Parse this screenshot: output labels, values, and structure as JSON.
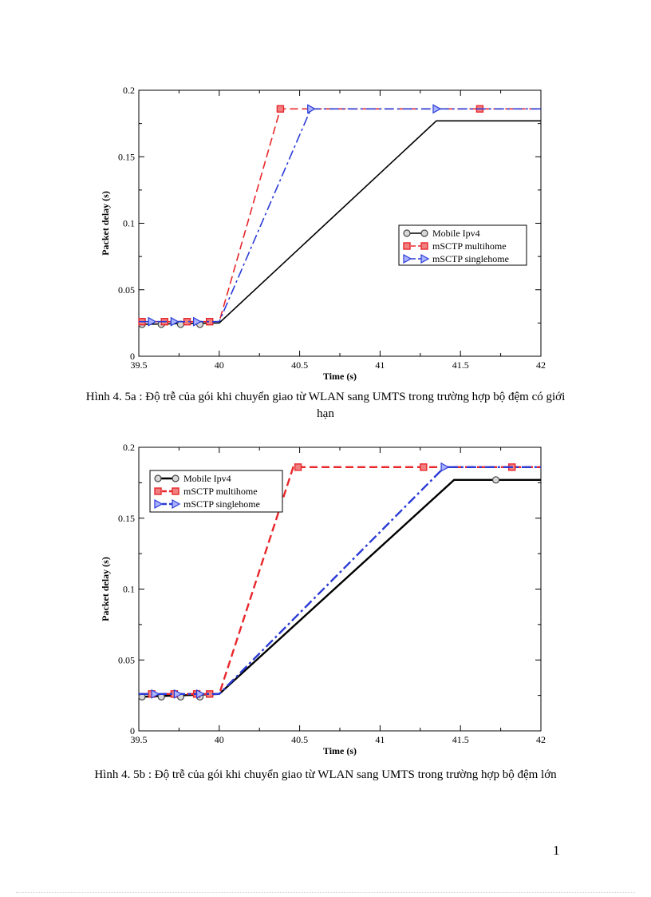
{
  "chart_data": [
    {
      "type": "line",
      "title": "",
      "xlabel": "Time (s)",
      "ylabel": "Packet delay (s)",
      "xlim": [
        39.5,
        42
      ],
      "ylim": [
        0,
        0.2
      ],
      "xticks": [
        "39.5",
        "40",
        "40.5",
        "41",
        "41.5",
        "42"
      ],
      "yticks": [
        "0",
        "0.05",
        "0.1",
        "0.15",
        "0.2"
      ],
      "legend_position": "center-right",
      "series": [
        {
          "name": "Mobile Ipv4",
          "color": "#000000",
          "marker": "circle",
          "x": [
            39.5,
            40.0,
            41.35,
            42.0
          ],
          "y": [
            0.024,
            0.025,
            0.177,
            0.177
          ],
          "marker_x": [
            39.52,
            39.64,
            39.76,
            39.88
          ],
          "marker_y": [
            0.024,
            0.024,
            0.024,
            0.024
          ]
        },
        {
          "name": "mSCTP multihome",
          "color": "#e8262b",
          "marker": "square",
          "x": [
            39.5,
            40.0,
            40.38,
            42.0
          ],
          "y": [
            0.026,
            0.026,
            0.186,
            0.186
          ],
          "marker_x": [
            39.52,
            39.66,
            39.8,
            39.94,
            40.38,
            41.62
          ],
          "marker_y": [
            0.026,
            0.026,
            0.026,
            0.026,
            0.186,
            0.186
          ]
        },
        {
          "name": "mSCTP singlehome",
          "color": "#2b3bd6",
          "marker": "triangle",
          "x": [
            39.5,
            40.0,
            40.57,
            42.0
          ],
          "y": [
            0.026,
            0.026,
            0.186,
            0.186
          ],
          "marker_x": [
            39.58,
            39.72,
            39.86,
            40.57,
            41.35
          ],
          "marker_y": [
            0.026,
            0.026,
            0.026,
            0.186,
            0.186
          ]
        }
      ]
    },
    {
      "type": "line",
      "title": "",
      "xlabel": "Time (s)",
      "ylabel": "Packet delay (s)",
      "xlim": [
        39.5,
        42
      ],
      "ylim": [
        0,
        0.2
      ],
      "xticks": [
        "39.5",
        "40",
        "40.5",
        "41",
        "41.5",
        "42"
      ],
      "yticks": [
        "0",
        "0.05",
        "0.1",
        "0.15",
        "0.2"
      ],
      "legend_position": "top-left",
      "series": [
        {
          "name": "Mobile Ipv4",
          "color": "#000000",
          "marker": "circle",
          "x": [
            39.5,
            40.0,
            41.46,
            42.0
          ],
          "y": [
            0.024,
            0.026,
            0.177,
            0.177
          ],
          "marker_x": [
            39.52,
            39.64,
            39.76,
            39.88,
            41.72
          ],
          "marker_y": [
            0.024,
            0.024,
            0.024,
            0.024,
            0.177
          ]
        },
        {
          "name": "mSCTP multihome",
          "color": "#e8262b",
          "marker": "square",
          "x": [
            39.5,
            40.0,
            40.46,
            42.0
          ],
          "y": [
            0.026,
            0.026,
            0.186,
            0.186
          ],
          "marker_x": [
            39.58,
            39.72,
            39.86,
            39.94,
            40.49,
            41.27,
            41.82
          ],
          "marker_y": [
            0.026,
            0.026,
            0.026,
            0.026,
            0.186,
            0.186,
            0.186
          ]
        },
        {
          "name": "mSCTP singlehome",
          "color": "#2b3bd6",
          "marker": "triangle",
          "x": [
            39.5,
            40.0,
            41.4,
            42.0
          ],
          "y": [
            0.026,
            0.026,
            0.186,
            0.186
          ],
          "marker_x": [
            39.6,
            39.74,
            39.88,
            41.4
          ],
          "marker_y": [
            0.026,
            0.026,
            0.026,
            0.186
          ]
        }
      ]
    }
  ],
  "captions": {
    "figure_a": "Hình 4. 5a : Độ trễ của gói khi chuyển giao từ WLAN sang UMTS trong trường hợp bộ đệm có giới hạn",
    "figure_b": "Hình 4. 5b : Độ trễ của gói khi chuyển giao từ WLAN sang UMTS trong trường hợp bộ đệm lớn"
  },
  "page_number": "1"
}
